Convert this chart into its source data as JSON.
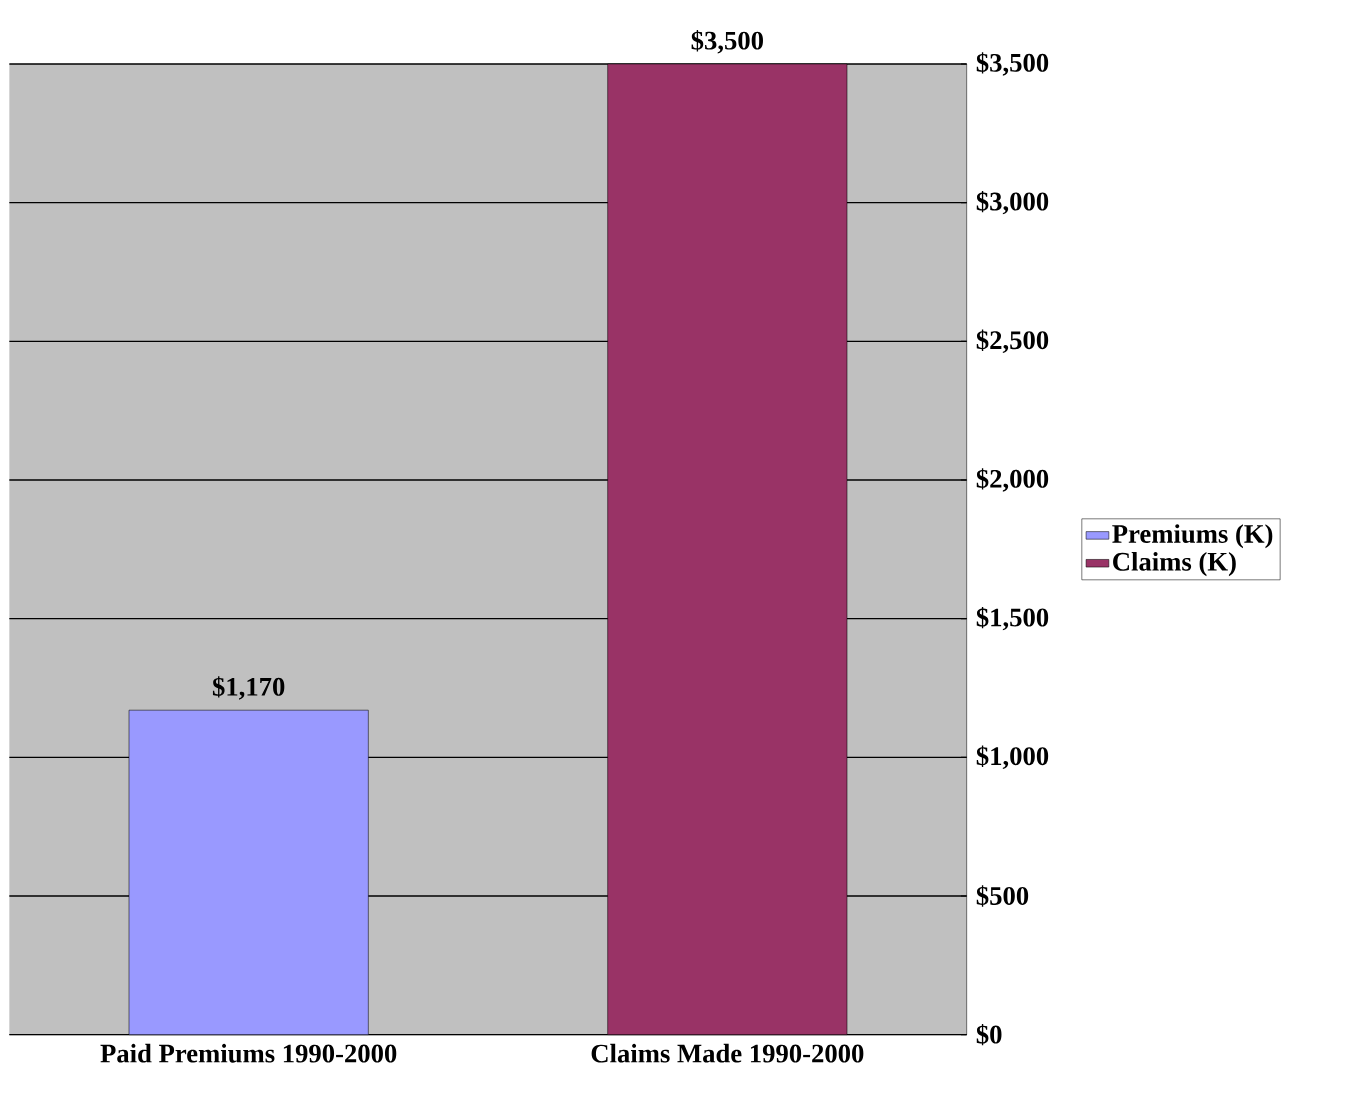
{
  "chart_data": {
    "type": "bar",
    "categories": [
      "Paid Premiums 1990-2000",
      "Claims Made 1990-2000"
    ],
    "series": [
      {
        "name": "Premiums (K)",
        "color": "#9999ff",
        "values": [
          1170,
          null
        ],
        "value_labels": [
          "$1,170",
          null
        ]
      },
      {
        "name": "Claims (K)",
        "color": "#993366",
        "values": [
          null,
          3500
        ],
        "value_labels": [
          null,
          "$3,500"
        ]
      }
    ],
    "ylim": [
      0,
      3500
    ],
    "yticks": [
      {
        "value": 0,
        "label": "$0"
      },
      {
        "value": 500,
        "label": "$500"
      },
      {
        "value": 1000,
        "label": "$1,000"
      },
      {
        "value": 1500,
        "label": "$1,500"
      },
      {
        "value": 2000,
        "label": "$2,000"
      },
      {
        "value": 2500,
        "label": "$2,500"
      },
      {
        "value": 3000,
        "label": "$3,000"
      },
      {
        "value": 3500,
        "label": "$3,500"
      }
    ],
    "grid": "y",
    "legend": "right"
  }
}
